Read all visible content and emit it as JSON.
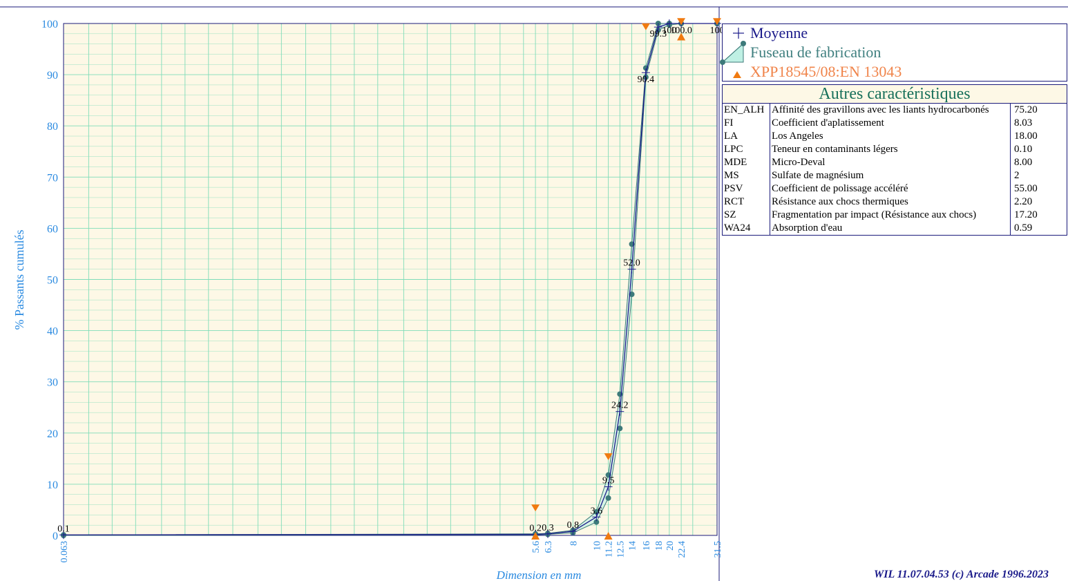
{
  "chart_data": {
    "type": "line",
    "xlabel": "Dimension en mm",
    "ylabel": "% Passants cumulés",
    "xscale": "log",
    "xlim": [
      0.063,
      31.5
    ],
    "ylim": [
      0,
      100
    ],
    "x_ticks": [
      "0.063",
      "5.6",
      "6.3",
      "8",
      "10",
      "11.2",
      "12.5",
      "14",
      "16",
      "18",
      "20",
      "22.4",
      "31.5"
    ],
    "y_ticks": [
      "0",
      "10",
      "20",
      "30",
      "40",
      "50",
      "60",
      "70",
      "80",
      "90",
      "100"
    ],
    "grid": true,
    "legend_position": "right",
    "series": [
      {
        "name": "Moyenne",
        "x": [
          0.063,
          5.6,
          6.3,
          8,
          10,
          11.2,
          12.5,
          14,
          16,
          18,
          20,
          22.4,
          31.5
        ],
        "y": [
          0.1,
          0.2,
          0.3,
          0.8,
          3.6,
          9.5,
          24.2,
          52.0,
          90.4,
          99.3,
          100,
          100,
          100
        ],
        "labels": [
          "0.1",
          "0.2",
          "0.3",
          "0.8",
          "3.6",
          "9.5",
          "24.2",
          "52.0",
          "90.4",
          "99.3",
          "100",
          "100.0",
          "100"
        ]
      },
      {
        "name": "Fuseau de fabrication",
        "upper": {
          "x": [
            0.063,
            5.6,
            6.3,
            8,
            10,
            11.2,
            12.5,
            14,
            16,
            18,
            20,
            22.4,
            31.5
          ],
          "y": [
            0.1,
            0.3,
            0.4,
            1.0,
            4.6,
            11.8,
            27.6,
            56.9,
            91.3,
            100,
            100,
            100,
            100
          ]
        },
        "lower": {
          "x": [
            0.063,
            5.6,
            6.3,
            8,
            10,
            11.2,
            12.5,
            14,
            16,
            18,
            20,
            22.4,
            31.5
          ],
          "y": [
            0.0,
            0.1,
            0.2,
            0.5,
            2.6,
            7.3,
            20.9,
            47.1,
            89.5,
            98.7,
            99.7,
            100,
            100
          ]
        }
      },
      {
        "name": "XPP18545/08:EN 13043",
        "upper_limits": {
          "x": [
            5.6,
            11.2,
            16,
            22.4,
            31.5
          ],
          "y": [
            5.5,
            15.5,
            99.5,
            100.5,
            100.5
          ]
        },
        "lower_limits": {
          "x": [
            5.6,
            11.2,
            22.4
          ],
          "y": [
            0,
            0,
            97.5
          ]
        }
      }
    ]
  },
  "legend": {
    "mean_label": "Moyenne",
    "band_label": "Fuseau de fabrication",
    "spec_label": "XPP18545/08:EN 13043"
  },
  "table": {
    "title": "Autres caractéristiques",
    "rows": [
      {
        "code": "EN_ALH",
        "name": "Affinité des gravillons avec les liants hydrocarbonés",
        "value": "75.20"
      },
      {
        "code": "FI",
        "name": "Coefficient d'aplatissement",
        "value": "8.03"
      },
      {
        "code": "LA",
        "name": "Los Angeles",
        "value": "18.00"
      },
      {
        "code": "LPC",
        "name": "Teneur en contaminants légers",
        "value": "0.10"
      },
      {
        "code": "MDE",
        "name": "Micro-Deval",
        "value": "8.00"
      },
      {
        "code": "MS",
        "name": "Sulfate de magnésium",
        "value": "2"
      },
      {
        "code": "PSV",
        "name": "Coefficient de polissage accéléré",
        "value": "55.00"
      },
      {
        "code": "RCT",
        "name": "Résistance aux chocs thermiques",
        "value": "2.20"
      },
      {
        "code": "SZ",
        "name": "Fragmentation par impact (Résistance aux chocs)",
        "value": "17.20"
      },
      {
        "code": "WA24",
        "name": "Absorption d'eau",
        "value": "0.59"
      }
    ]
  },
  "footer": "WIL 11.07.04.53 (c) Arcade 1996.2023",
  "colors": {
    "plot_bg": "#fdf8e6",
    "grid": "#7fdcb8",
    "mean_line": "#1a1a8a",
    "band": "#3d7a7a",
    "spec": "#f07a10",
    "axis_text": "#2a8ae0"
  }
}
